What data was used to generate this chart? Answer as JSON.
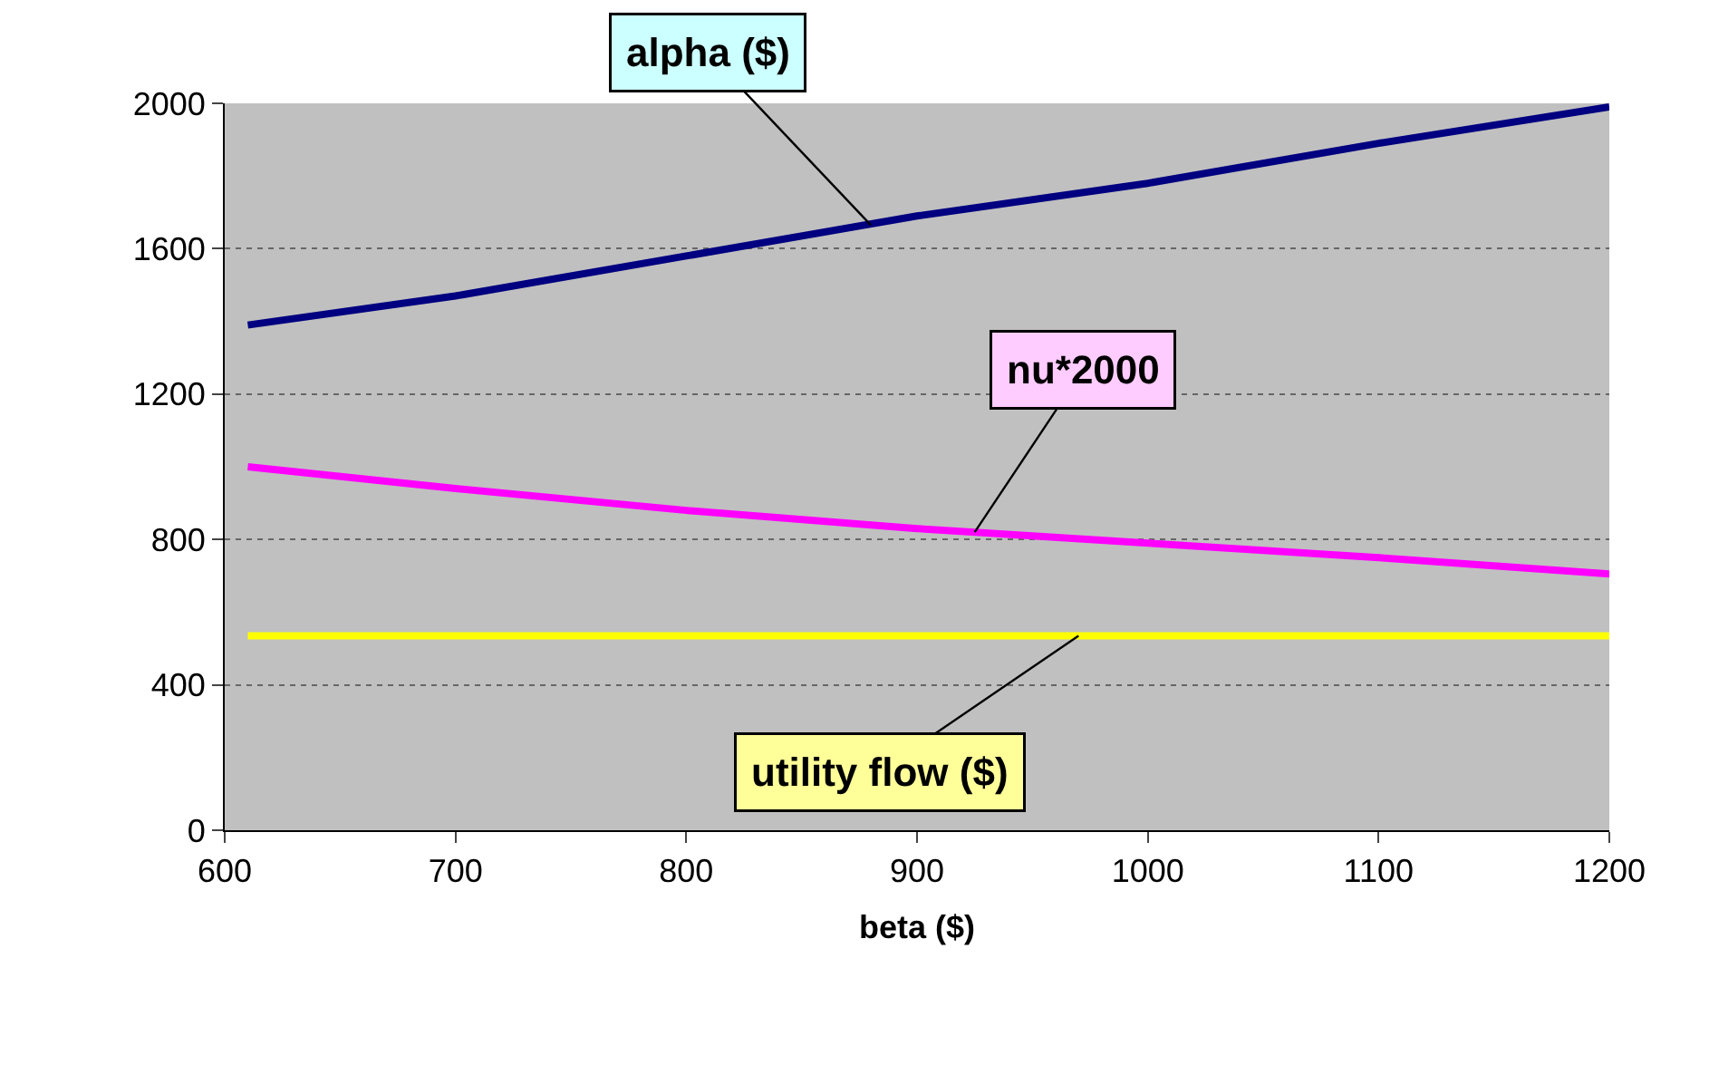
{
  "chart_data": {
    "type": "line",
    "xlabel": "beta ($)",
    "x": [
      610,
      700,
      800,
      900,
      1000,
      1100,
      1200
    ],
    "series": [
      {
        "color": "#000080",
        "values": [
          1390,
          1470,
          1580,
          1690,
          1780,
          1890,
          1990
        ]
      },
      {
        "color": "#ff00ff",
        "values": [
          1000,
          940,
          880,
          830,
          790,
          750,
          705
        ]
      },
      {
        "color": "#ffff00",
        "values": [
          535,
          535,
          535,
          535,
          535,
          535,
          535
        ]
      }
    ],
    "annotations": [
      {
        "text": "alpha ($)",
        "x": 880,
        "y": 1665
      },
      {
        "text": "nu*2000",
        "x": 925,
        "y": 820
      },
      {
        "text": "utility flow ($)",
        "x": 970,
        "y": 535
      }
    ],
    "xlim": [
      600,
      1200
    ],
    "xticks": [
      600,
      700,
      800,
      900,
      1000,
      1100,
      1200
    ],
    "ylim": [
      0,
      2000
    ],
    "yticks": [
      0,
      400,
      800,
      1200,
      1600,
      2000
    ],
    "grid": "y",
    "marker": "none",
    "line_style": "solid"
  }
}
